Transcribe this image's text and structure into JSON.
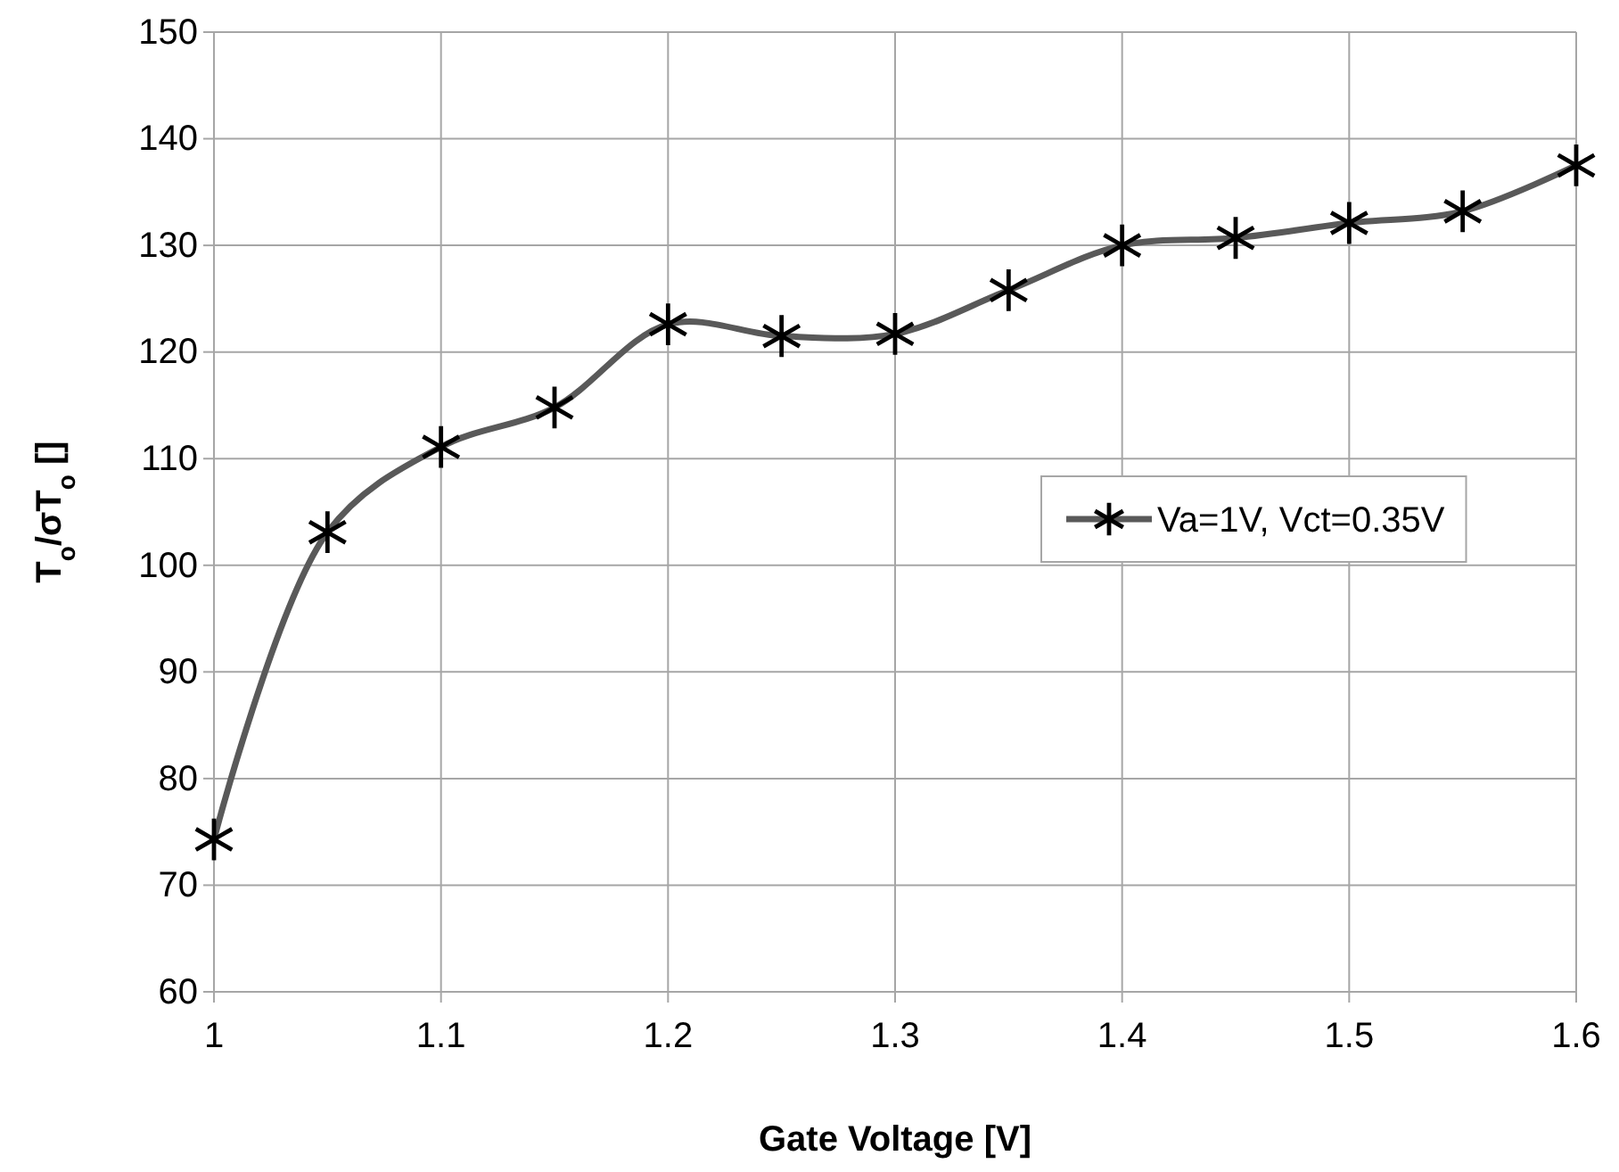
{
  "chart_data": {
    "type": "line",
    "xlabel": "Gate Voltage [V]",
    "ylabel": "T$_{o}$/σT$_{o}$ []",
    "x": [
      1,
      1.05,
      1.1,
      1.15,
      1.2,
      1.25,
      1.3,
      1.35,
      1.4,
      1.45,
      1.5,
      1.55,
      1.6
    ],
    "series": [
      {
        "name": "Va=1V, Vct=0.35V",
        "color": "#595959",
        "values": [
          74.3,
          103.1,
          111.1,
          114.8,
          122.6,
          121.5,
          121.7,
          125.8,
          130,
          130.7,
          132.1,
          133.2,
          137.5
        ]
      }
    ],
    "xlim": [
      1,
      1.6
    ],
    "xticks": [
      1,
      1.1,
      1.2,
      1.3,
      1.4,
      1.5,
      1.6
    ],
    "ylim": [
      60,
      150
    ],
    "yticks": [
      60,
      70,
      80,
      90,
      100,
      110,
      120,
      130,
      140,
      150
    ],
    "grid": true,
    "legend": "right",
    "marker": "star",
    "line_style": "solid"
  }
}
